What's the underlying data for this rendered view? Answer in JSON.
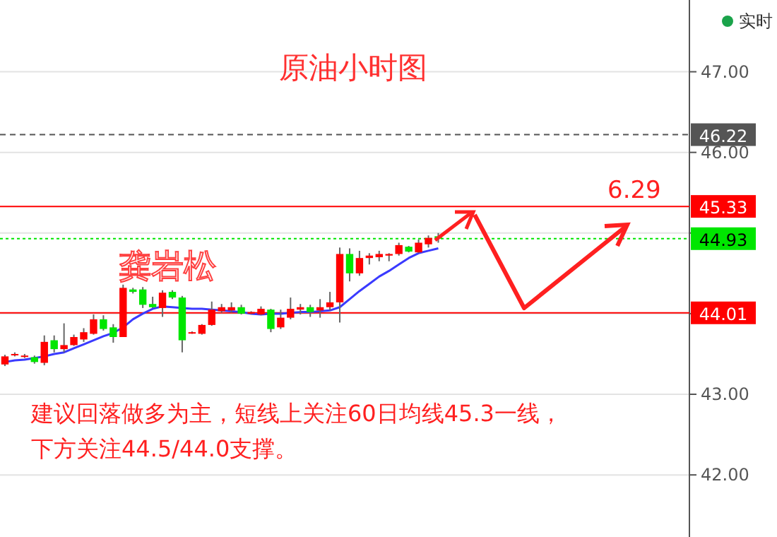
{
  "chart_data": {
    "type": "candlestick",
    "title": "原油小时图",
    "annotations": [
      "龚岩松",
      "建议回落做多为主，短线上关注60日均线45.3一线，",
      "下方关注44.5/44.0支撑。",
      "6.29",
      "实时"
    ],
    "categories": [
      null,
      null,
      null,
      null,
      null,
      null,
      null,
      null,
      null,
      null,
      null,
      null,
      null,
      null,
      null,
      null,
      null,
      null,
      null,
      null,
      null,
      null,
      null,
      null,
      null,
      null,
      null,
      null,
      null,
      null,
      null,
      null,
      null,
      null,
      null,
      null,
      null,
      null,
      null,
      null,
      null,
      null,
      null,
      null,
      null,
      null,
      null,
      null,
      null,
      null,
      null,
      null,
      null,
      null,
      null,
      null,
      null,
      null,
      null,
      null,
      null,
      null,
      null,
      null,
      null,
      null,
      null,
      null,
      null,
      null
    ],
    "ohlc": [
      [
        43.37,
        43.49,
        43.35,
        43.47
      ],
      [
        43.49,
        43.52,
        43.47,
        43.5
      ],
      [
        43.47,
        43.5,
        43.45,
        43.48
      ],
      [
        43.46,
        43.48,
        43.38,
        43.4
      ],
      [
        43.39,
        43.73,
        43.36,
        43.65
      ],
      [
        43.67,
        43.73,
        43.52,
        43.56
      ],
      [
        43.56,
        43.88,
        43.52,
        43.61
      ],
      [
        43.61,
        43.74,
        43.6,
        43.71
      ],
      [
        43.68,
        43.82,
        43.65,
        43.77
      ],
      [
        43.75,
        43.99,
        43.74,
        43.93
      ],
      [
        43.93,
        43.98,
        43.79,
        43.81
      ],
      [
        43.83,
        43.87,
        43.64,
        43.71
      ],
      [
        43.71,
        44.36,
        43.71,
        44.32
      ],
      [
        44.3,
        44.32,
        44.25,
        44.27
      ],
      [
        44.3,
        44.33,
        44.07,
        44.11
      ],
      [
        44.12,
        44.21,
        44.07,
        44.08
      ],
      [
        44.07,
        44.29,
        43.96,
        44.26
      ],
      [
        44.27,
        44.29,
        44.18,
        44.2
      ],
      [
        44.2,
        44.22,
        43.52,
        43.67
      ],
      [
        43.76,
        43.78,
        43.75,
        43.77
      ],
      [
        43.75,
        43.87,
        43.74,
        43.86
      ],
      [
        43.86,
        44.15,
        43.85,
        44.05
      ],
      [
        44.03,
        44.12,
        44.01,
        44.08
      ],
      [
        44.04,
        44.14,
        44.01,
        44.08
      ],
      [
        44.08,
        44.11,
        43.99,
        44.0
      ],
      [
        44.0,
        44.03,
        43.99,
        44.02
      ],
      [
        43.99,
        44.09,
        43.98,
        44.06
      ],
      [
        44.05,
        44.06,
        43.77,
        43.81
      ],
      [
        43.83,
        44.05,
        43.81,
        43.95
      ],
      [
        43.95,
        44.2,
        43.93,
        44.06
      ],
      [
        44.05,
        44.12,
        43.99,
        44.08
      ],
      [
        44.08,
        44.11,
        43.96,
        44.02
      ],
      [
        44.04,
        44.18,
        43.95,
        44.08
      ],
      [
        44.08,
        44.27,
        44.04,
        44.14
      ],
      [
        44.14,
        44.82,
        43.89,
        44.74
      ],
      [
        44.74,
        44.81,
        44.4,
        44.5
      ],
      [
        44.5,
        44.78,
        44.47,
        44.69
      ],
      [
        44.69,
        44.75,
        44.61,
        44.72
      ],
      [
        44.7,
        44.78,
        44.65,
        44.74
      ],
      [
        44.72,
        44.75,
        44.65,
        44.74
      ],
      [
        44.74,
        44.88,
        44.72,
        44.85
      ],
      [
        44.83,
        44.84,
        44.76,
        44.77
      ],
      [
        44.76,
        44.92,
        44.75,
        44.88
      ],
      [
        44.86,
        44.97,
        44.82,
        44.94
      ],
      [
        44.96,
        45.0,
        44.88,
        44.93
      ],
      null,
      null,
      null,
      null,
      null,
      null,
      null,
      null,
      null,
      null,
      null,
      null,
      null,
      null,
      null,
      null,
      null,
      null,
      null,
      null,
      null,
      null,
      null,
      null,
      null
    ],
    "colors": [
      "#ff0000",
      "#ff0000",
      "#ff0000",
      "#00e600",
      "#ff0000",
      "#00e600",
      "#ff0000",
      "#ff0000",
      "#ff0000",
      "#ff0000",
      "#00e600",
      "#00e600",
      "#ff0000",
      "#00e600",
      "#00e600",
      "#00e600",
      "#ff0000",
      "#00e600",
      "#00e600",
      "#ff0000",
      "#ff0000",
      "#ff0000",
      "#ff0000",
      "#ff0000",
      "#00e600",
      "#ff0000",
      "#ff0000",
      "#00e600",
      "#ff0000",
      "#ff0000",
      "#ff0000",
      "#00e600",
      "#ff0000",
      "#ff0000",
      "#ff0000",
      "#00e600",
      "#ff0000",
      "#ff0000",
      "#ff0000",
      "#ff0000",
      "#ff0000",
      "#00e600",
      "#ff0000",
      "#ff0000",
      "#00e600",
      null,
      null,
      null,
      null,
      null,
      null,
      null,
      null,
      null,
      null,
      null,
      null,
      null,
      null,
      null,
      null,
      null,
      null,
      null,
      null,
      null,
      null,
      null,
      null,
      null
    ],
    "series": [
      {
        "type": "line",
        "color": "#3a3aff",
        "values": [
          43.4,
          43.42,
          43.43,
          43.45,
          43.47,
          43.5,
          43.52,
          43.57,
          43.62,
          43.67,
          43.72,
          43.76,
          43.83,
          43.93,
          44.0,
          44.06,
          44.09,
          44.08,
          44.07,
          44.06,
          44.06,
          44.05,
          44.04,
          44.03,
          44.02,
          44.0,
          43.99,
          44.0,
          44.0,
          44.01,
          44.02,
          44.02,
          44.03,
          44.04,
          44.08,
          44.18,
          44.28,
          44.37,
          44.46,
          44.53,
          44.61,
          44.69,
          44.75,
          44.78,
          44.81,
          null,
          null,
          null,
          null,
          null,
          null,
          null,
          null,
          null,
          null,
          null,
          null,
          null,
          null,
          null,
          null,
          null,
          null,
          null,
          null,
          null,
          null,
          null,
          null,
          null
        ]
      }
    ],
    "ylim": [
      41.23,
      47.89
    ],
    "yticks": [
      {
        "value": 42,
        "label": "42.00"
      },
      {
        "value": 43,
        "label": "43.00"
      },
      {
        "value": 44,
        "label": null
      },
      {
        "value": 45,
        "label": null
      },
      {
        "value": 46,
        "label": "46.00"
      },
      {
        "value": 47,
        "label": "47.00"
      }
    ],
    "ref_lines": [
      {
        "axis": "y",
        "value": 46.22,
        "label": "46.22",
        "color": "#555555",
        "line_style": "dashed"
      },
      {
        "axis": "y",
        "value": 45.33,
        "label": "45.33",
        "color": "#ff0000",
        "line_style": "solid"
      },
      {
        "axis": "y",
        "value": 44.93,
        "label": "44.93",
        "color": "#00e600",
        "line_style": "dotted"
      },
      {
        "axis": "y",
        "value": 44.01,
        "label": "44.01",
        "color": "#ff0000",
        "line_style": "solid"
      }
    ],
    "grid": "y",
    "tick_labels": "y"
  }
}
